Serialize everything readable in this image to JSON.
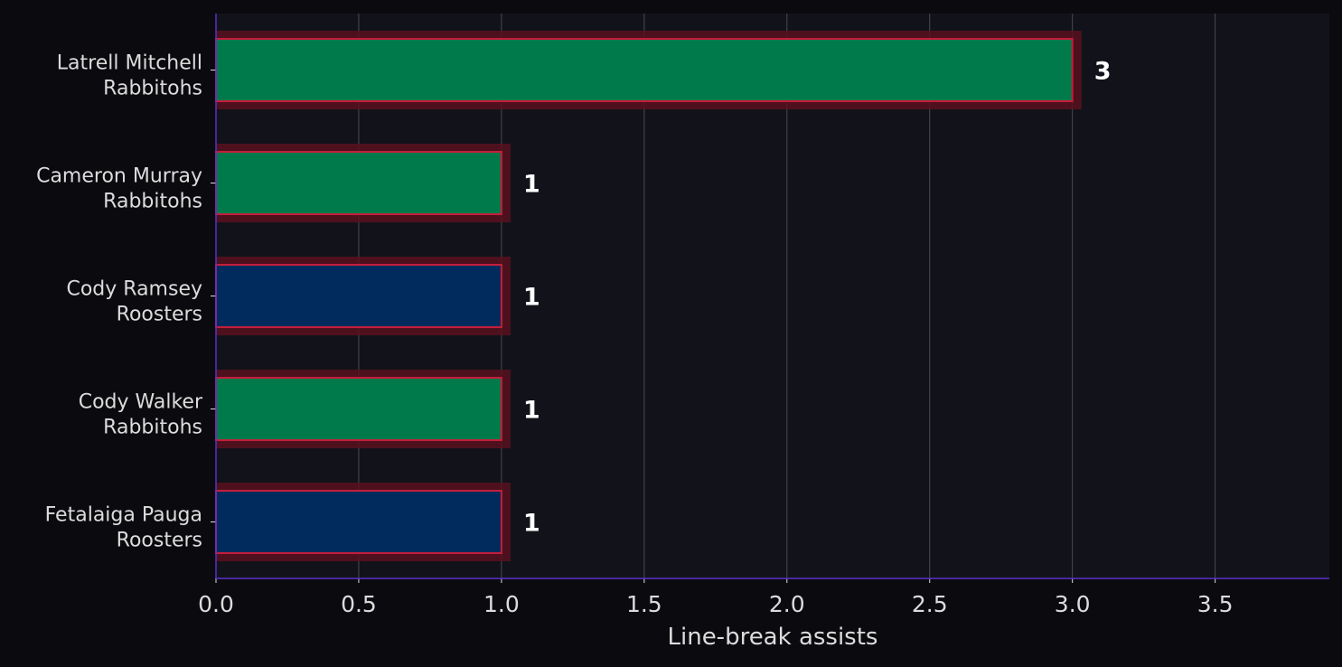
{
  "colors": {
    "page_bg": "#0b0b0f",
    "plot_bg": "#12131a",
    "axis_spine": "#5b2fc9",
    "grid": "#4a4a50",
    "tick_text": "#dcdcdc",
    "value_text": "#ffffff",
    "glow": "#5a1020",
    "bar_edge": "#c41e3a",
    "Rabbitohs": "#007a4a",
    "Roosters": "#002b5c"
  },
  "chart_data": {
    "type": "bar",
    "orientation": "horizontal",
    "categories": [
      {
        "name": "Latrell Mitchell",
        "team": "Rabbitohs"
      },
      {
        "name": "Cameron Murray",
        "team": "Rabbitohs"
      },
      {
        "name": "Cody Ramsey",
        "team": "Roosters"
      },
      {
        "name": "Cody Walker",
        "team": "Rabbitohs"
      },
      {
        "name": "Fetalaiga Pauga",
        "team": "Roosters"
      }
    ],
    "values": [
      3,
      1,
      1,
      1,
      1
    ],
    "value_labels": [
      "3",
      "1",
      "1",
      "1",
      "1"
    ],
    "xlabel": "Line-break assists",
    "xlim": [
      0,
      3.9
    ],
    "xticks": [
      "0.0",
      "0.5",
      "1.0",
      "1.5",
      "2.0",
      "2.5",
      "3.0",
      "3.5"
    ],
    "grid": "x",
    "legend": "none"
  }
}
